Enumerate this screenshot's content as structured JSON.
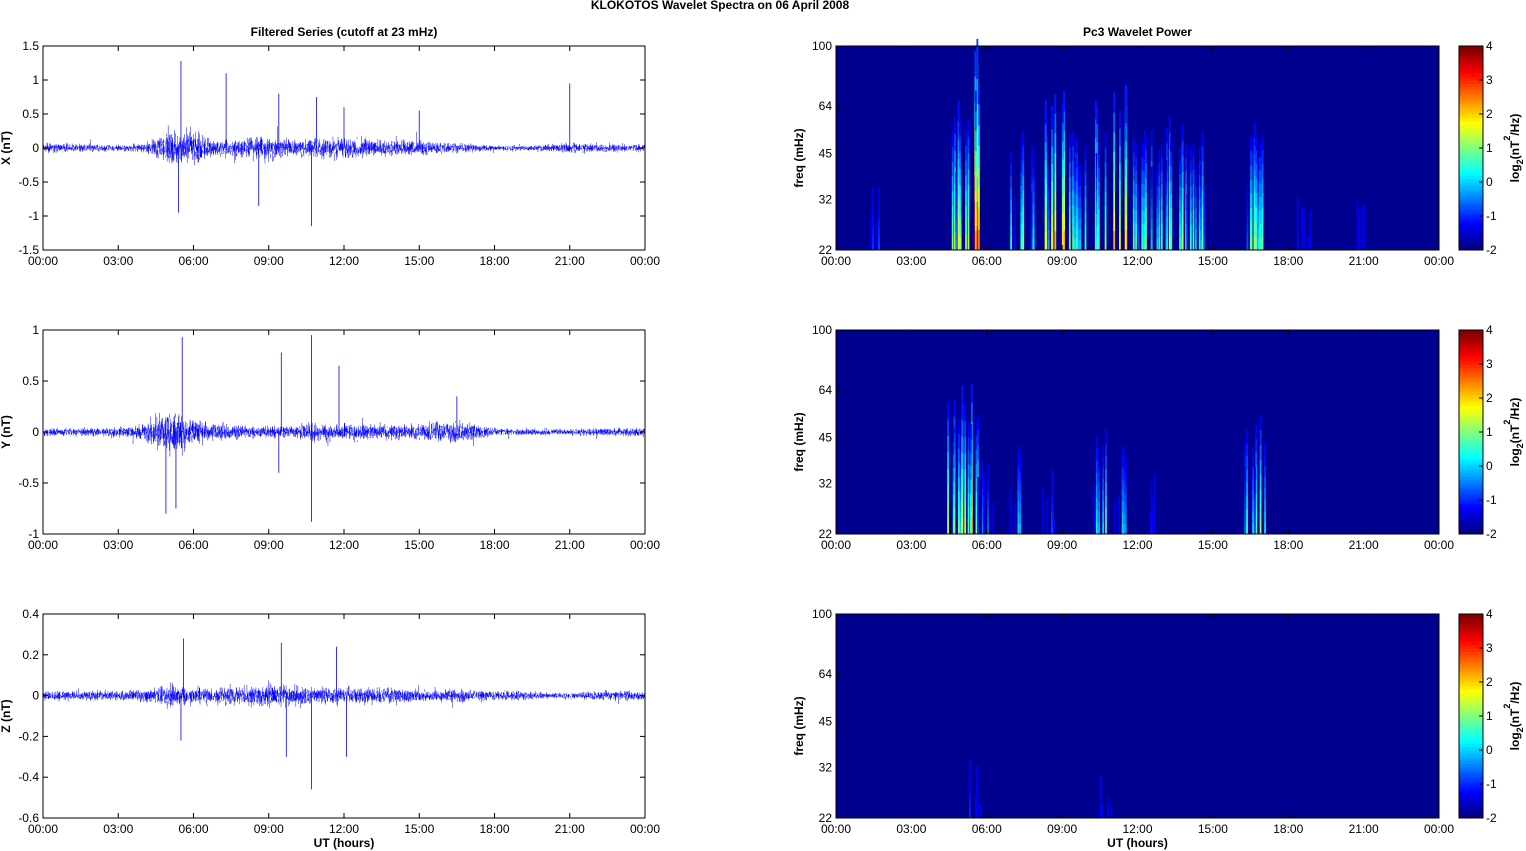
{
  "title": "KLOKOTOS Wavelet Spectra on 06 April     2008",
  "colors": {
    "trace": "#0000ff",
    "axis": "#000000",
    "bg": "#00008f"
  },
  "chart_data": [
    {
      "type": "line",
      "panel": "left",
      "row": 0,
      "title": "Filtered Series (cutoff at 23 mHz)",
      "ylabel": "X (nT)",
      "xlabel": "",
      "xlim": [
        0,
        24
      ],
      "ylim": [
        -1.5,
        1.5
      ],
      "yticks": [
        "-1.5",
        "-1",
        "-0.5",
        "0",
        "0.5",
        "1",
        "1.5"
      ],
      "ytick_values": [
        -1.5,
        -1,
        -0.5,
        0,
        0.5,
        1,
        1.5
      ],
      "xticks": [
        "00:00",
        "03:00",
        "06:00",
        "09:00",
        "12:00",
        "15:00",
        "18:00",
        "21:00",
        "00:00"
      ],
      "hourly_envelope": [
        0.08,
        0.08,
        0.07,
        0.06,
        0.08,
        0.3,
        0.35,
        0.15,
        0.2,
        0.2,
        0.15,
        0.2,
        0.2,
        0.17,
        0.15,
        0.15,
        0.1,
        0.08,
        0.05,
        0.05,
        0.06,
        0.1,
        0.08,
        0.07
      ],
      "spikes": [
        [
          5.5,
          1.28
        ],
        [
          5.4,
          -0.95
        ],
        [
          7.3,
          1.1
        ],
        [
          8.6,
          -0.85
        ],
        [
          9.4,
          0.8
        ],
        [
          10.7,
          -1.15
        ],
        [
          10.9,
          0.75
        ],
        [
          12.0,
          0.6
        ],
        [
          15.0,
          0.55
        ],
        [
          21.0,
          0.95
        ]
      ]
    },
    {
      "type": "line",
      "panel": "left",
      "row": 1,
      "title": "",
      "ylabel": "Y (nT)",
      "xlabel": "",
      "xlim": [
        0,
        24
      ],
      "ylim": [
        -1,
        1
      ],
      "yticks": [
        "-1",
        "-0.5",
        "0",
        "0.5",
        "1"
      ],
      "ytick_values": [
        -1,
        -0.5,
        0,
        0.5,
        1
      ],
      "xticks": [
        "00:00",
        "03:00",
        "06:00",
        "09:00",
        "12:00",
        "15:00",
        "18:00",
        "21:00",
        "00:00"
      ],
      "hourly_envelope": [
        0.05,
        0.05,
        0.05,
        0.06,
        0.1,
        0.3,
        0.15,
        0.1,
        0.08,
        0.08,
        0.08,
        0.1,
        0.1,
        0.1,
        0.1,
        0.1,
        0.15,
        0.12,
        0.05,
        0.04,
        0.04,
        0.04,
        0.05,
        0.05
      ],
      "spikes": [
        [
          5.55,
          0.93
        ],
        [
          4.9,
          -0.8
        ],
        [
          5.3,
          -0.75
        ],
        [
          9.5,
          0.78
        ],
        [
          9.4,
          -0.4
        ],
        [
          10.7,
          0.95
        ],
        [
          10.7,
          -0.88
        ],
        [
          11.8,
          0.65
        ],
        [
          16.5,
          0.35
        ]
      ]
    },
    {
      "type": "line",
      "panel": "left",
      "row": 2,
      "title": "",
      "ylabel": "Z (nT)",
      "xlabel": "UT (hours)",
      "xlim": [
        0,
        24
      ],
      "ylim": [
        -0.6,
        0.4
      ],
      "yticks": [
        "-0.6",
        "-0.4",
        "-0.2",
        "0",
        "0.2",
        "0.4"
      ],
      "ytick_values": [
        -0.6,
        -0.4,
        -0.2,
        0,
        0.2,
        0.4
      ],
      "xticks": [
        "00:00",
        "03:00",
        "06:00",
        "09:00",
        "12:00",
        "15:00",
        "18:00",
        "21:00",
        "00:00"
      ],
      "hourly_envelope": [
        0.03,
        0.03,
        0.03,
        0.03,
        0.04,
        0.08,
        0.05,
        0.05,
        0.06,
        0.07,
        0.06,
        0.05,
        0.05,
        0.05,
        0.05,
        0.04,
        0.04,
        0.04,
        0.03,
        0.03,
        0.02,
        0.02,
        0.03,
        0.03
      ],
      "spikes": [
        [
          5.6,
          0.28
        ],
        [
          5.5,
          -0.22
        ],
        [
          9.5,
          0.26
        ],
        [
          9.7,
          -0.3
        ],
        [
          10.7,
          -0.46
        ],
        [
          11.7,
          0.24
        ],
        [
          12.1,
          -0.3
        ]
      ]
    },
    {
      "type": "heatmap",
      "panel": "right",
      "row": 0,
      "title": "Pc3 Wavelet Power",
      "ylabel": "freq (mHz)",
      "xlabel": "",
      "xlim": [
        0,
        24
      ],
      "ylim": [
        22,
        100
      ],
      "yscale": "log",
      "yticks": [
        "22",
        "32",
        "45",
        "64",
        "100"
      ],
      "ytick_values": [
        22,
        32,
        45,
        64,
        100
      ],
      "xticks": [
        "00:00",
        "03:00",
        "06:00",
        "09:00",
        "12:00",
        "15:00",
        "18:00",
        "21:00",
        "00:00"
      ],
      "clim": [
        -2,
        4
      ],
      "colorbar_ticks": [
        "-2",
        "-1",
        "0",
        "1",
        "2",
        "3",
        "4"
      ],
      "colorbar_label": "log2(nT2/Hz)",
      "bursts_hour_power": [
        [
          1.6,
          -0.8
        ],
        [
          4.7,
          2
        ],
        [
          5.0,
          1.5
        ],
        [
          5.4,
          4
        ],
        [
          7.2,
          1
        ],
        [
          7.6,
          0.5
        ],
        [
          8.5,
          2
        ],
        [
          8.8,
          2.3
        ],
        [
          9.3,
          1
        ],
        [
          9.7,
          0.5
        ],
        [
          10.5,
          2
        ],
        [
          11.3,
          2.5
        ],
        [
          12.0,
          1
        ],
        [
          12.5,
          1
        ],
        [
          13.0,
          1.5
        ],
        [
          13.5,
          1
        ],
        [
          14.0,
          1.2
        ],
        [
          14.5,
          1
        ],
        [
          16.6,
          1.3
        ],
        [
          16.9,
          1
        ],
        [
          18.6,
          -1.2
        ],
        [
          20.8,
          -1.3
        ]
      ]
    },
    {
      "type": "heatmap",
      "panel": "right",
      "row": 1,
      "title": "",
      "ylabel": "freq (mHz)",
      "xlabel": "",
      "xlim": [
        0,
        24
      ],
      "ylim": [
        22,
        100
      ],
      "yscale": "log",
      "yticks": [
        "22",
        "32",
        "45",
        "64",
        "100"
      ],
      "ytick_values": [
        22,
        32,
        45,
        64,
        100
      ],
      "xticks": [
        "00:00",
        "03:00",
        "06:00",
        "09:00",
        "12:00",
        "15:00",
        "18:00",
        "21:00",
        "00:00"
      ],
      "clim": [
        -2,
        4
      ],
      "colorbar_ticks": [
        "-2",
        "-1",
        "0",
        "1",
        "2",
        "3",
        "4"
      ],
      "colorbar_label": "log2(nT2/Hz)",
      "bursts_hour_power": [
        [
          4.7,
          1.5
        ],
        [
          5.1,
          2
        ],
        [
          5.4,
          1
        ],
        [
          6.0,
          -0.5
        ],
        [
          7.2,
          0
        ],
        [
          8.4,
          -0.8
        ],
        [
          10.5,
          0.5
        ],
        [
          11.3,
          0
        ],
        [
          12.6,
          -1
        ],
        [
          16.4,
          0.5
        ],
        [
          16.8,
          1
        ]
      ]
    },
    {
      "type": "heatmap",
      "panel": "right",
      "row": 2,
      "title": "",
      "ylabel": "freq (mHz)",
      "xlabel": "UT (hours)",
      "xlim": [
        0,
        24
      ],
      "ylim": [
        22,
        100
      ],
      "yscale": "log",
      "yticks": [
        "22",
        "32",
        "45",
        "64",
        "100"
      ],
      "ytick_values": [
        22,
        32,
        45,
        64,
        100
      ],
      "xticks": [
        "00:00",
        "03:00",
        "06:00",
        "09:00",
        "12:00",
        "15:00",
        "18:00",
        "21:00",
        "00:00"
      ],
      "clim": [
        -2,
        4
      ],
      "colorbar_ticks": [
        "-2",
        "-1",
        "0",
        "1",
        "2",
        "3",
        "4"
      ],
      "colorbar_label": "log2(nT2/Hz)",
      "bursts_hour_power": [
        [
          5.5,
          -1
        ],
        [
          10.7,
          -1.5
        ]
      ]
    }
  ]
}
